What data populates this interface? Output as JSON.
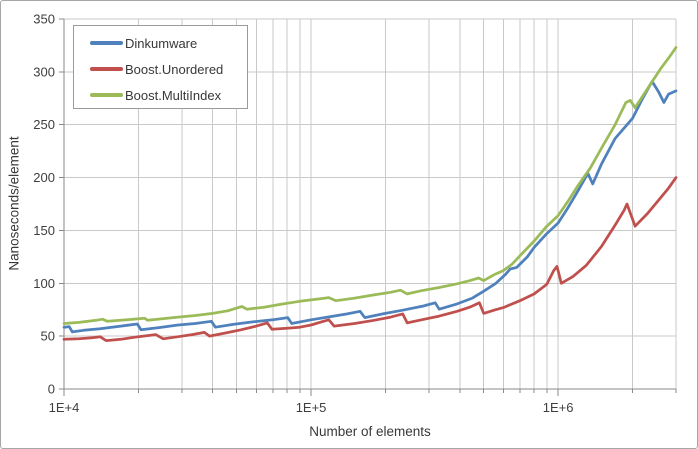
{
  "chart_data": {
    "type": "line",
    "title": "",
    "xlabel": "Number of elements",
    "ylabel": "Nanoseconds/element",
    "x_scale": "log",
    "xlim": [
      10000,
      3000000
    ],
    "ylim": [
      0,
      350
    ],
    "grid": true,
    "legend_position": "top-left-inside",
    "y_ticks": [
      0,
      50,
      100,
      150,
      200,
      250,
      300,
      350
    ],
    "x_major_ticks": [
      {
        "value": 10000,
        "label": "1E+4"
      },
      {
        "value": 100000,
        "label": "1E+5"
      },
      {
        "value": 1000000,
        "label": "1E+6"
      }
    ],
    "colors": {
      "grid": "#c9c9c9",
      "axis": "#8a8a8a",
      "text": "#3f3f3f",
      "border": "#a6a6a6"
    },
    "series": [
      {
        "name": "Dinkumware",
        "color": "#4F81BD",
        "points": [
          [
            10000,
            58.5
          ],
          [
            10500,
            59
          ],
          [
            10800,
            54
          ],
          [
            12000,
            55.5
          ],
          [
            14000,
            57
          ],
          [
            17000,
            59.5
          ],
          [
            19800,
            61.5
          ],
          [
            20500,
            56
          ],
          [
            24000,
            58
          ],
          [
            29000,
            60.5
          ],
          [
            34000,
            62
          ],
          [
            39500,
            64
          ],
          [
            41000,
            58.5
          ],
          [
            48000,
            61
          ],
          [
            58000,
            63.5
          ],
          [
            70000,
            65.5
          ],
          [
            80500,
            67.5
          ],
          [
            83500,
            62
          ],
          [
            100000,
            65.5
          ],
          [
            120000,
            68.5
          ],
          [
            140000,
            71
          ],
          [
            158000,
            73.5
          ],
          [
            165000,
            67.5
          ],
          [
            195000,
            71
          ],
          [
            235000,
            74.5
          ],
          [
            285000,
            78.5
          ],
          [
            318000,
            81.5
          ],
          [
            330000,
            75.5
          ],
          [
            390000,
            80.5
          ],
          [
            450000,
            86
          ],
          [
            500000,
            92.5
          ],
          [
            560000,
            100
          ],
          [
            610000,
            108
          ],
          [
            640000,
            113.5
          ],
          [
            680000,
            115
          ],
          [
            750000,
            125
          ],
          [
            800000,
            134
          ],
          [
            900000,
            147
          ],
          [
            1000000,
            157
          ],
          [
            1100000,
            172
          ],
          [
            1200000,
            187
          ],
          [
            1320000,
            204
          ],
          [
            1380000,
            194
          ],
          [
            1500000,
            213
          ],
          [
            1700000,
            237
          ],
          [
            2000000,
            256
          ],
          [
            2200000,
            275
          ],
          [
            2400000,
            291
          ],
          [
            2550000,
            281
          ],
          [
            2680000,
            271
          ],
          [
            2800000,
            279
          ],
          [
            3000000,
            282
          ]
        ]
      },
      {
        "name": "Boost.Unordered",
        "color": "#C0504D",
        "points": [
          [
            10000,
            47
          ],
          [
            11500,
            47.5
          ],
          [
            13000,
            48.5
          ],
          [
            14000,
            49.5
          ],
          [
            14800,
            45.8
          ],
          [
            17000,
            47
          ],
          [
            20000,
            49.5
          ],
          [
            23500,
            51.5
          ],
          [
            25200,
            47.5
          ],
          [
            29000,
            49.5
          ],
          [
            33000,
            51.5
          ],
          [
            37000,
            53.5
          ],
          [
            38800,
            50
          ],
          [
            45000,
            53
          ],
          [
            52000,
            56
          ],
          [
            60000,
            59.5
          ],
          [
            66500,
            62.5
          ],
          [
            69500,
            56.5
          ],
          [
            80000,
            57.5
          ],
          [
            90000,
            58.5
          ],
          [
            100000,
            60.5
          ],
          [
            110000,
            63.5
          ],
          [
            118000,
            65.5
          ],
          [
            124000,
            59.5
          ],
          [
            150000,
            62
          ],
          [
            180000,
            65
          ],
          [
            210000,
            68
          ],
          [
            235000,
            71
          ],
          [
            245000,
            62.5
          ],
          [
            280000,
            65.5
          ],
          [
            330000,
            69
          ],
          [
            390000,
            73.5
          ],
          [
            440000,
            77.5
          ],
          [
            480000,
            81.5
          ],
          [
            500000,
            71.5
          ],
          [
            550000,
            74.5
          ],
          [
            600000,
            77
          ],
          [
            700000,
            83.5
          ],
          [
            800000,
            90
          ],
          [
            900000,
            99
          ],
          [
            960000,
            112
          ],
          [
            990000,
            116
          ],
          [
            1030000,
            100
          ],
          [
            1150000,
            106.5
          ],
          [
            1300000,
            117
          ],
          [
            1500000,
            135
          ],
          [
            1700000,
            155
          ],
          [
            1850000,
            169
          ],
          [
            1900000,
            175
          ],
          [
            2050000,
            154
          ],
          [
            2300000,
            166
          ],
          [
            2600000,
            181
          ],
          [
            2800000,
            190
          ],
          [
            3000000,
            200
          ]
        ]
      },
      {
        "name": "Boost.MultiIndex",
        "color": "#9BBB59",
        "points": [
          [
            10000,
            62
          ],
          [
            11500,
            63
          ],
          [
            13500,
            65
          ],
          [
            14300,
            66
          ],
          [
            15000,
            64
          ],
          [
            18000,
            65.5
          ],
          [
            21200,
            67
          ],
          [
            21800,
            65
          ],
          [
            25000,
            66.5
          ],
          [
            29000,
            68
          ],
          [
            34000,
            69.5
          ],
          [
            40000,
            71.5
          ],
          [
            46000,
            74
          ],
          [
            52500,
            78
          ],
          [
            55000,
            75.5
          ],
          [
            65000,
            77.5
          ],
          [
            75000,
            80
          ],
          [
            90000,
            83
          ],
          [
            110000,
            85.5
          ],
          [
            118000,
            86.5
          ],
          [
            126000,
            83.5
          ],
          [
            150000,
            86
          ],
          [
            180000,
            89
          ],
          [
            210000,
            91.5
          ],
          [
            230000,
            93.5
          ],
          [
            245000,
            90
          ],
          [
            280000,
            93
          ],
          [
            330000,
            96
          ],
          [
            390000,
            99.5
          ],
          [
            440000,
            102.5
          ],
          [
            477000,
            105
          ],
          [
            500000,
            102.5
          ],
          [
            550000,
            108
          ],
          [
            600000,
            112
          ],
          [
            650000,
            118
          ],
          [
            700000,
            126
          ],
          [
            800000,
            140
          ],
          [
            900000,
            154
          ],
          [
            1000000,
            164
          ],
          [
            1100000,
            178
          ],
          [
            1200000,
            192
          ],
          [
            1350000,
            209
          ],
          [
            1500000,
            228
          ],
          [
            1700000,
            250
          ],
          [
            1880000,
            271
          ],
          [
            1960000,
            273
          ],
          [
            2050000,
            266
          ],
          [
            2300000,
            284
          ],
          [
            2600000,
            303
          ],
          [
            2800000,
            313
          ],
          [
            3000000,
            323
          ]
        ]
      }
    ]
  }
}
